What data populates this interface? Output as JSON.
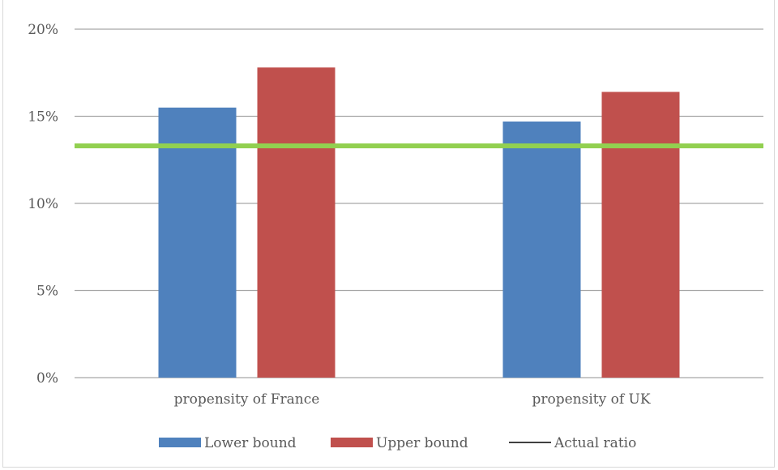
{
  "chart_data": {
    "type": "bar",
    "title": "",
    "xlabel": "",
    "ylabel": "",
    "categories": [
      "propensity of France",
      "propensity of UK"
    ],
    "series": [
      {
        "name": "Lower bound",
        "values": [
          15.5,
          14.7
        ],
        "color": "#4f81bd"
      },
      {
        "name": "Upper bound",
        "values": [
          17.8,
          16.4
        ],
        "color": "#c0504d"
      }
    ],
    "reference_line": {
      "name": "Actual ratio",
      "value": 13.3,
      "color": "#92d050",
      "legend_color": "#000000"
    },
    "ylim": [
      0,
      20
    ],
    "yticks": [
      0,
      5,
      10,
      15,
      20
    ],
    "ytick_format": "%",
    "grid": true,
    "legend": "bottom"
  }
}
